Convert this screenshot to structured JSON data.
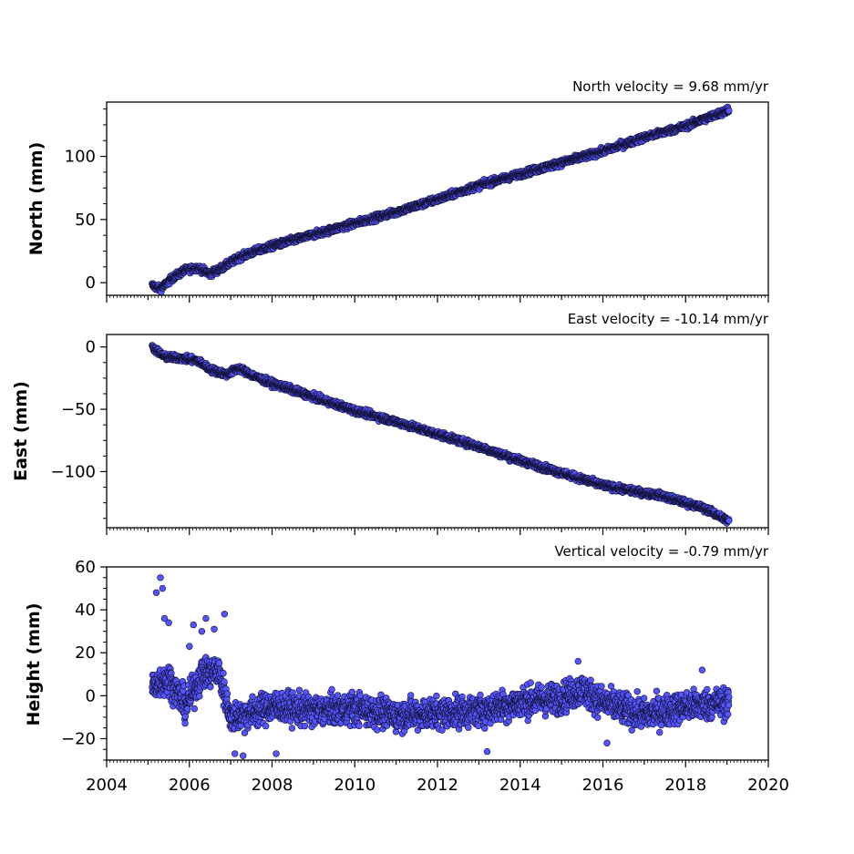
{
  "colors": {
    "marker_fill": "#5555ff",
    "marker_edge": "#111133",
    "axis": "#000000"
  },
  "chart_data": [
    {
      "type": "scatter",
      "panel": "north",
      "title": "North velocity = 9.68 mm/yr",
      "ylabel": "North (mm)",
      "xlim": [
        2004,
        2020
      ],
      "ylim": [
        -10,
        143
      ],
      "yticks": [
        0,
        50,
        100
      ],
      "ytick_labels": [
        "0",
        "50",
        "100"
      ],
      "velocity_mm_per_yr": 9.68,
      "anchors": [
        [
          2005.1,
          -2
        ],
        [
          2005.3,
          -5
        ],
        [
          2005.6,
          4
        ],
        [
          2005.9,
          10
        ],
        [
          2006.2,
          12
        ],
        [
          2006.5,
          7
        ],
        [
          2006.8,
          12
        ],
        [
          2007.2,
          20
        ],
        [
          2007.6,
          25
        ],
        [
          2008.0,
          29
        ],
        [
          2009.0,
          38
        ],
        [
          2010.0,
          47
        ],
        [
          2011.0,
          56
        ],
        [
          2012.0,
          66
        ],
        [
          2013.0,
          77
        ],
        [
          2014.0,
          86
        ],
        [
          2015.0,
          95
        ],
        [
          2016.0,
          104
        ],
        [
          2017.0,
          115
        ],
        [
          2018.0,
          124
        ],
        [
          2019.05,
          137
        ]
      ],
      "scatter_mm": 2.5
    },
    {
      "type": "scatter",
      "panel": "east",
      "title": "East velocity = -10.14 mm/yr",
      "ylabel": "East (mm)",
      "xlim": [
        2004,
        2020
      ],
      "ylim": [
        -145,
        10
      ],
      "yticks": [
        0,
        -50,
        -100
      ],
      "ytick_labels": [
        "0",
        "−50",
        "−100"
      ],
      "velocity_mm_per_yr": -10.14,
      "anchors": [
        [
          2005.1,
          0
        ],
        [
          2005.4,
          -8
        ],
        [
          2005.8,
          -9
        ],
        [
          2006.2,
          -11
        ],
        [
          2006.5,
          -18
        ],
        [
          2006.9,
          -22
        ],
        [
          2007.2,
          -17
        ],
        [
          2007.6,
          -24
        ],
        [
          2008.0,
          -29
        ],
        [
          2009.0,
          -40
        ],
        [
          2010.0,
          -51
        ],
        [
          2011.0,
          -60
        ],
        [
          2012.0,
          -70
        ],
        [
          2013.0,
          -80
        ],
        [
          2014.0,
          -91
        ],
        [
          2015.0,
          -101
        ],
        [
          2016.0,
          -111
        ],
        [
          2016.8,
          -116
        ],
        [
          2017.4,
          -119
        ],
        [
          2018.0,
          -125
        ],
        [
          2018.5,
          -130
        ],
        [
          2019.05,
          -140
        ]
      ],
      "scatter_mm": 2.5
    },
    {
      "type": "scatter",
      "panel": "height",
      "title": "Vertical velocity = -0.79 mm/yr",
      "ylabel": "Height (mm)",
      "xlabel": "",
      "xlim": [
        2004,
        2020
      ],
      "ylim": [
        -30,
        60
      ],
      "yticks": [
        -20,
        0,
        20,
        40,
        60
      ],
      "ytick_labels": [
        "−20",
        "0",
        "20",
        "40",
        "60"
      ],
      "xticks": [
        2004,
        2006,
        2008,
        2010,
        2012,
        2014,
        2016,
        2018,
        2020
      ],
      "xtick_labels": [
        "2004",
        "2006",
        "2008",
        "2010",
        "2012",
        "2014",
        "2016",
        "2018",
        "2020"
      ],
      "velocity_mm_per_yr": -0.79,
      "anchors": [
        [
          2005.1,
          5
        ],
        [
          2005.5,
          8
        ],
        [
          2005.9,
          -5
        ],
        [
          2006.3,
          10
        ],
        [
          2006.7,
          12
        ],
        [
          2007.0,
          -10
        ],
        [
          2007.5,
          -8
        ],
        [
          2008.0,
          -5
        ],
        [
          2009.0,
          -7
        ],
        [
          2010.0,
          -6
        ],
        [
          2011.0,
          -9
        ],
        [
          2012.0,
          -8
        ],
        [
          2013.0,
          -7
        ],
        [
          2014.0,
          -3
        ],
        [
          2015.0,
          -1
        ],
        [
          2015.5,
          3
        ],
        [
          2016.0,
          -3
        ],
        [
          2017.0,
          -9
        ],
        [
          2018.0,
          -5
        ],
        [
          2019.05,
          -3
        ]
      ],
      "scatter_mm": 7,
      "outliers": [
        [
          2005.2,
          48
        ],
        [
          2005.3,
          55
        ],
        [
          2005.35,
          50
        ],
        [
          2005.4,
          36
        ],
        [
          2005.5,
          34
        ],
        [
          2006.0,
          23
        ],
        [
          2006.1,
          33
        ],
        [
          2006.3,
          30
        ],
        [
          2006.4,
          36
        ],
        [
          2006.6,
          31
        ],
        [
          2006.85,
          38
        ],
        [
          2007.1,
          -27
        ],
        [
          2007.3,
          -28
        ],
        [
          2008.1,
          -27
        ],
        [
          2013.2,
          -26
        ],
        [
          2015.4,
          16
        ],
        [
          2016.1,
          -22
        ],
        [
          2018.4,
          12
        ]
      ]
    }
  ]
}
